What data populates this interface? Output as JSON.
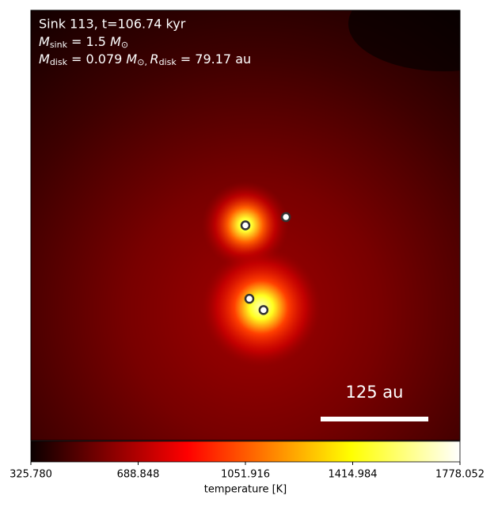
{
  "chart_data": {
    "type": "heatmap",
    "annotations": {
      "line1": "Sink 113, t=106.74 kyr",
      "line2": {
        "symbol": "M",
        "sub": "sink",
        "text": " = 1.5 ",
        "unit": "M",
        "unit_sub": "⊙"
      },
      "line3": {
        "symbol": "M",
        "sub": "disk",
        "text": " = 0.079 ",
        "unit": "M",
        "unit_sub": "⊙, ",
        "symbol2": "R",
        "sub2": "disk",
        "text2": " = 79.17 au"
      }
    },
    "colormap": "hot",
    "clim": [
      325.78,
      1778.052
    ],
    "colorbar_ticks": [
      {
        "value": 325.78,
        "label": "325.780"
      },
      {
        "value": 688.848,
        "label": "688.848"
      },
      {
        "value": 1051.916,
        "label": "1051.916"
      },
      {
        "value": 1414.984,
        "label": "1414.984"
      },
      {
        "value": 1778.052,
        "label": "1778.052"
      }
    ],
    "colorbar_label": "temperature [K]",
    "xlim": [
      -249,
      249
    ],
    "ylim": [
      -249,
      249
    ],
    "scale_bar": {
      "value": 125,
      "label": "125 au"
    },
    "sinks": {
      "x": [
        0,
        47,
        4.6,
        21
      ],
      "y": [
        0,
        9.6,
        -85,
        -98
      ]
    }
  }
}
